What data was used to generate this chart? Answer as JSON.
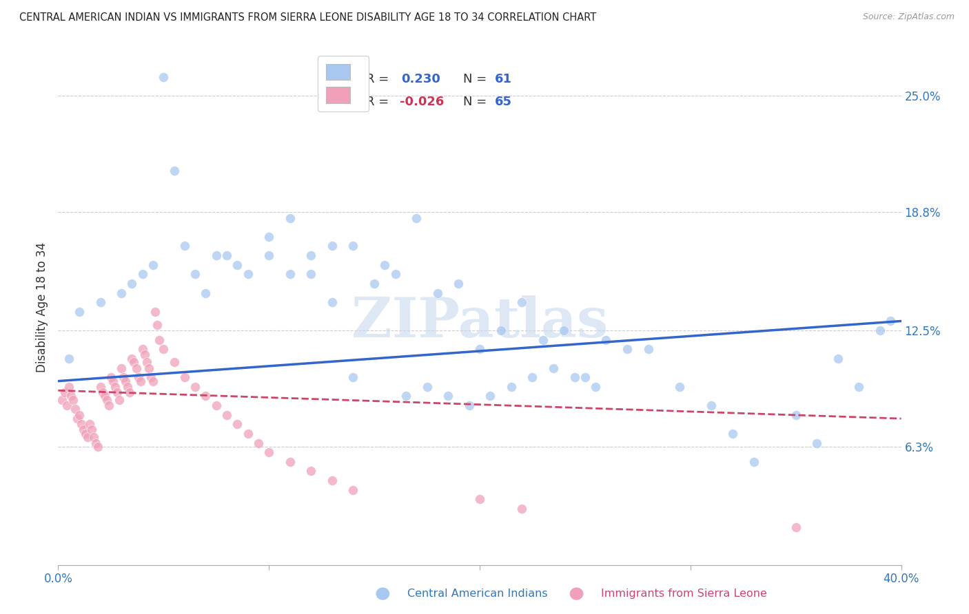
{
  "title": "CENTRAL AMERICAN INDIAN VS IMMIGRANTS FROM SIERRA LEONE DISABILITY AGE 18 TO 34 CORRELATION CHART",
  "source": "Source: ZipAtlas.com",
  "ylabel": "Disability Age 18 to 34",
  "ytick_labels": [
    "25.0%",
    "18.8%",
    "12.5%",
    "6.3%"
  ],
  "ytick_values": [
    0.25,
    0.188,
    0.125,
    0.063
  ],
  "xlim": [
    0.0,
    0.4
  ],
  "ylim": [
    0.0,
    0.275
  ],
  "color_blue": "#A8C8F0",
  "color_pink": "#F0A0B8",
  "line_color_blue": "#3366CC",
  "line_color_pink": "#CC4466",
  "blue_r": 0.23,
  "blue_n": 61,
  "pink_r": -0.026,
  "pink_n": 65,
  "blue_scatter_x": [
    0.005,
    0.01,
    0.02,
    0.03,
    0.035,
    0.04,
    0.045,
    0.05,
    0.055,
    0.06,
    0.065,
    0.07,
    0.075,
    0.08,
    0.085,
    0.09,
    0.1,
    0.1,
    0.11,
    0.11,
    0.12,
    0.12,
    0.13,
    0.13,
    0.14,
    0.14,
    0.15,
    0.155,
    0.16,
    0.17,
    0.18,
    0.19,
    0.2,
    0.21,
    0.22,
    0.23,
    0.24,
    0.25,
    0.26,
    0.27,
    0.165,
    0.175,
    0.185,
    0.195,
    0.205,
    0.215,
    0.225,
    0.235,
    0.245,
    0.255,
    0.28,
    0.295,
    0.31,
    0.32,
    0.33,
    0.35,
    0.36,
    0.37,
    0.38,
    0.39,
    0.395
  ],
  "blue_scatter_y": [
    0.11,
    0.135,
    0.14,
    0.145,
    0.15,
    0.155,
    0.16,
    0.26,
    0.21,
    0.17,
    0.155,
    0.145,
    0.165,
    0.165,
    0.16,
    0.155,
    0.175,
    0.165,
    0.185,
    0.155,
    0.155,
    0.165,
    0.17,
    0.14,
    0.17,
    0.1,
    0.15,
    0.16,
    0.155,
    0.185,
    0.145,
    0.15,
    0.115,
    0.125,
    0.14,
    0.12,
    0.125,
    0.1,
    0.12,
    0.115,
    0.09,
    0.095,
    0.09,
    0.085,
    0.09,
    0.095,
    0.1,
    0.105,
    0.1,
    0.095,
    0.115,
    0.095,
    0.085,
    0.07,
    0.055,
    0.08,
    0.065,
    0.11,
    0.095,
    0.125,
    0.13
  ],
  "pink_scatter_x": [
    0.002,
    0.003,
    0.004,
    0.005,
    0.006,
    0.007,
    0.008,
    0.009,
    0.01,
    0.011,
    0.012,
    0.013,
    0.014,
    0.015,
    0.016,
    0.017,
    0.018,
    0.019,
    0.02,
    0.021,
    0.022,
    0.023,
    0.024,
    0.025,
    0.026,
    0.027,
    0.028,
    0.029,
    0.03,
    0.031,
    0.032,
    0.033,
    0.034,
    0.035,
    0.036,
    0.037,
    0.038,
    0.039,
    0.04,
    0.041,
    0.042,
    0.043,
    0.044,
    0.045,
    0.046,
    0.047,
    0.048,
    0.05,
    0.055,
    0.06,
    0.065,
    0.07,
    0.075,
    0.08,
    0.085,
    0.09,
    0.095,
    0.1,
    0.11,
    0.12,
    0.13,
    0.14,
    0.2,
    0.22,
    0.35
  ],
  "pink_scatter_y": [
    0.088,
    0.092,
    0.085,
    0.095,
    0.09,
    0.088,
    0.083,
    0.078,
    0.08,
    0.075,
    0.072,
    0.07,
    0.068,
    0.075,
    0.072,
    0.068,
    0.065,
    0.063,
    0.095,
    0.092,
    0.09,
    0.088,
    0.085,
    0.1,
    0.098,
    0.095,
    0.092,
    0.088,
    0.105,
    0.1,
    0.098,
    0.095,
    0.092,
    0.11,
    0.108,
    0.105,
    0.1,
    0.098,
    0.115,
    0.112,
    0.108,
    0.105,
    0.1,
    0.098,
    0.135,
    0.128,
    0.12,
    0.115,
    0.108,
    0.1,
    0.095,
    0.09,
    0.085,
    0.08,
    0.075,
    0.07,
    0.065,
    0.06,
    0.055,
    0.05,
    0.045,
    0.04,
    0.035,
    0.03,
    0.02
  ]
}
